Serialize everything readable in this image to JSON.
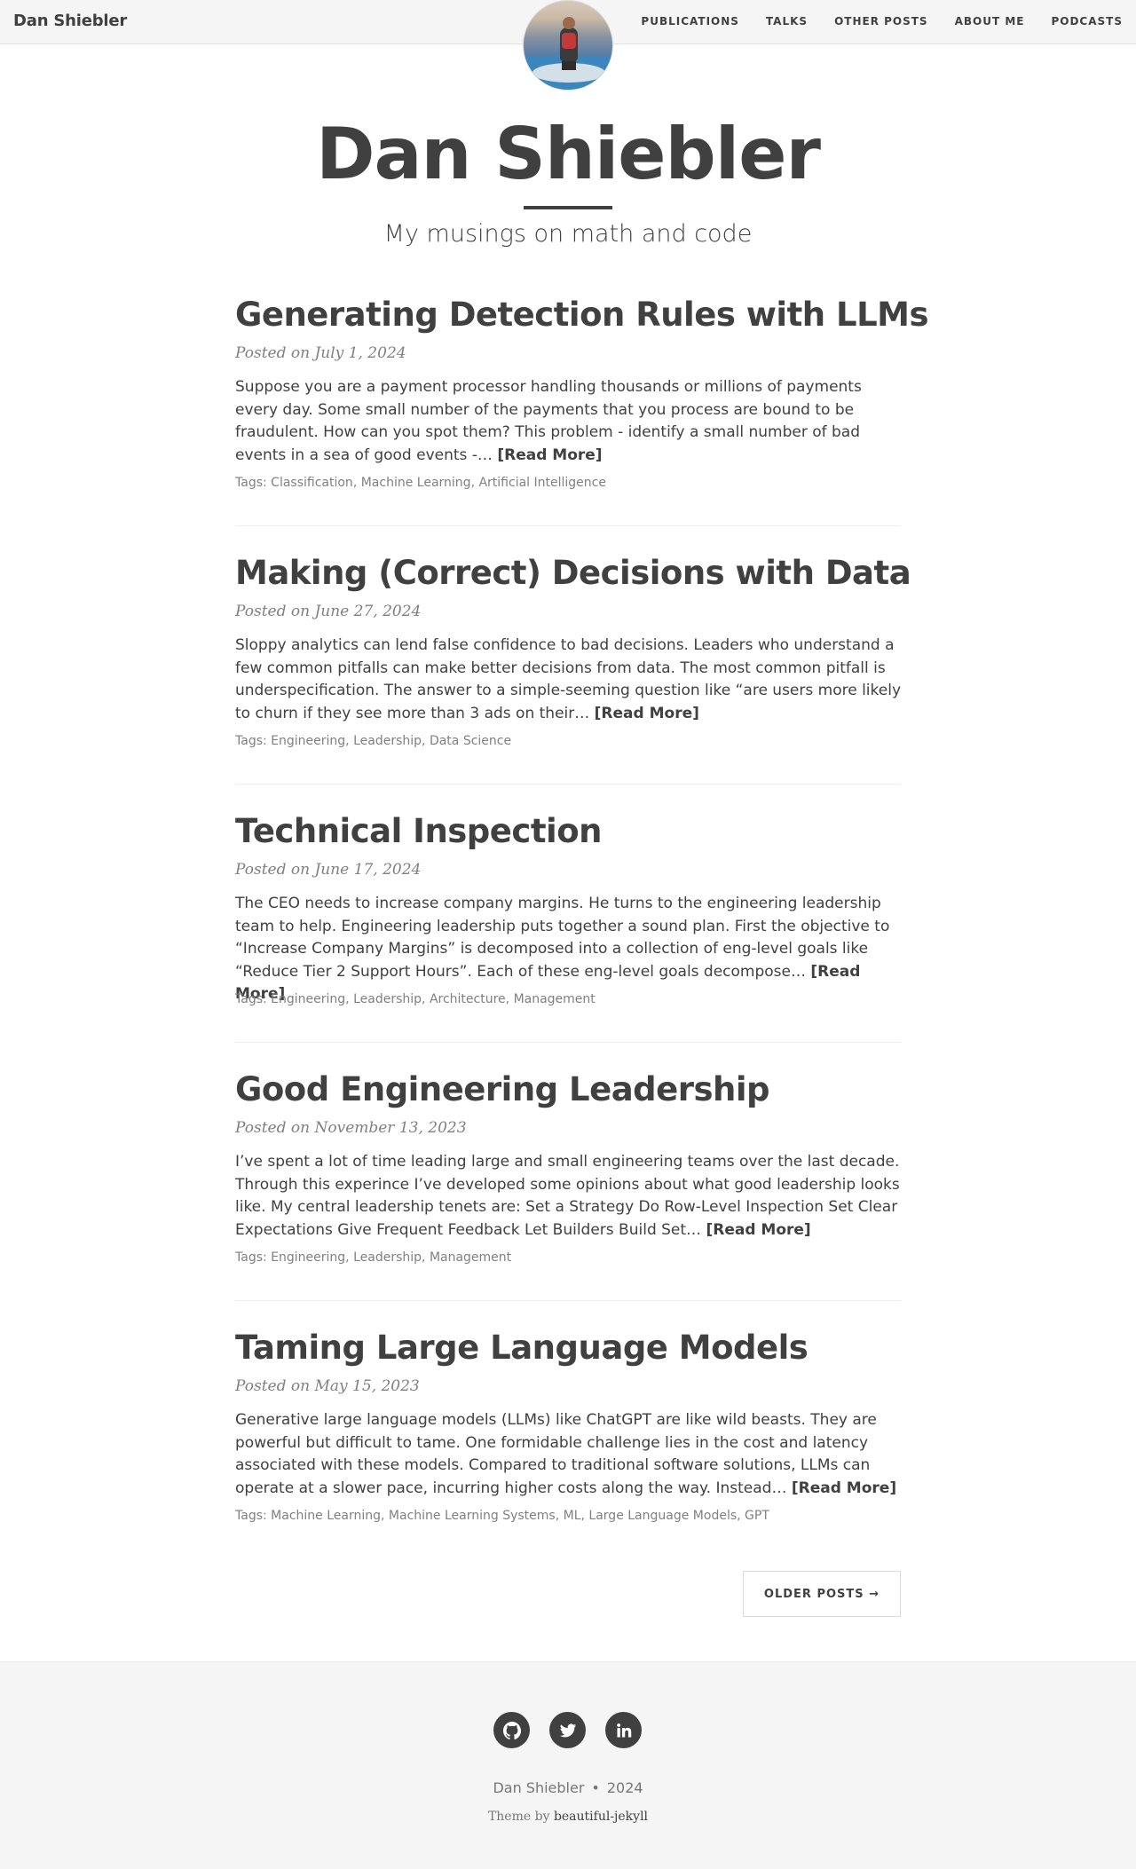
{
  "navbar": {
    "brand": "Dan Shiebler",
    "links": [
      "PUBLICATIONS",
      "TALKS",
      "OTHER POSTS",
      "ABOUT ME",
      "PODCASTS"
    ]
  },
  "header": {
    "title": "Dan Shiebler",
    "subtitle": "My musings on math and code"
  },
  "posts": [
    {
      "title": "Generating Detection Rules with LLMs",
      "meta": "Posted on July 1, 2024",
      "excerpt": "Suppose you are a payment processor handling thousands or millions of payments every day. Some small number of the payments that you process are bound to be fraudulent. How can you spot them? This problem - identify a small number of bad events in a sea of good events -…",
      "read_more": "[Read More]",
      "tags_label": "Tags:",
      "tags": [
        "Classification",
        "Machine Learning",
        "Artificial Intelligence"
      ]
    },
    {
      "title": "Making (Correct) Decisions with Data",
      "meta": "Posted on June 27, 2024",
      "excerpt": "Sloppy analytics can lend false confidence to bad decisions. Leaders who understand a few common pitfalls can make better decisions from data. The most common pitfall is underspecification. The answer to a simple-seeming question like “are users more likely to churn if they see more than 3 ads on their…",
      "read_more": "[Read More]",
      "tags_label": "Tags:",
      "tags": [
        "Engineering",
        "Leadership",
        "Data Science"
      ]
    },
    {
      "title": "Technical Inspection",
      "meta": "Posted on June 17, 2024",
      "excerpt": "The CEO needs to increase company margins. He turns to the engineering leadership team to help. Engineering leadership puts together a sound plan. First the objective to “Increase Company Margins” is decomposed into a collection of eng-level goals like “Reduce Tier 2 Support Hours”. Each of these eng-level goals decompose…",
      "read_more": "[Read More]",
      "tags_label": "Tags:",
      "tags": [
        "Engineering",
        "Leadership",
        "Architecture",
        "Management"
      ]
    },
    {
      "title": "Good Engineering Leadership",
      "meta": "Posted on November 13, 2023",
      "excerpt": "I’ve spent a lot of time leading large and small engineering teams over the last decade. Through this experince I’ve developed some opinions about what good leadership looks like. My central leadership tenets are: Set a Strategy Do Row-Level Inspection Set Clear Expectations Give Frequent Feedback Let Builders Build Set…",
      "read_more": "[Read More]",
      "tags_label": "Tags:",
      "tags": [
        "Engineering",
        "Leadership",
        "Management"
      ]
    },
    {
      "title": "Taming Large Language Models",
      "meta": "Posted on May 15, 2023",
      "excerpt": "Generative large language models (LLMs) like ChatGPT are like wild beasts. They are powerful but difficult to tame. One formidable challenge lies in the cost and latency associated with these models. Compared to traditional software solutions, LLMs can operate at a slower pace, incurring higher costs along the way. Instead…",
      "read_more": "[Read More]",
      "tags_label": "Tags:",
      "tags": [
        "Machine Learning",
        "Machine Learning Systems",
        "ML",
        "Large Language Models",
        "GPT"
      ]
    }
  ],
  "pager": {
    "older_label": "OLDER POSTS →"
  },
  "footer": {
    "social": [
      "github-icon",
      "twitter-icon",
      "linkedin-icon"
    ],
    "author": "Dan Shiebler",
    "dot": "•",
    "year": "2024",
    "theme_prefix": "Theme by",
    "theme_link": "beautiful-jekyll"
  }
}
